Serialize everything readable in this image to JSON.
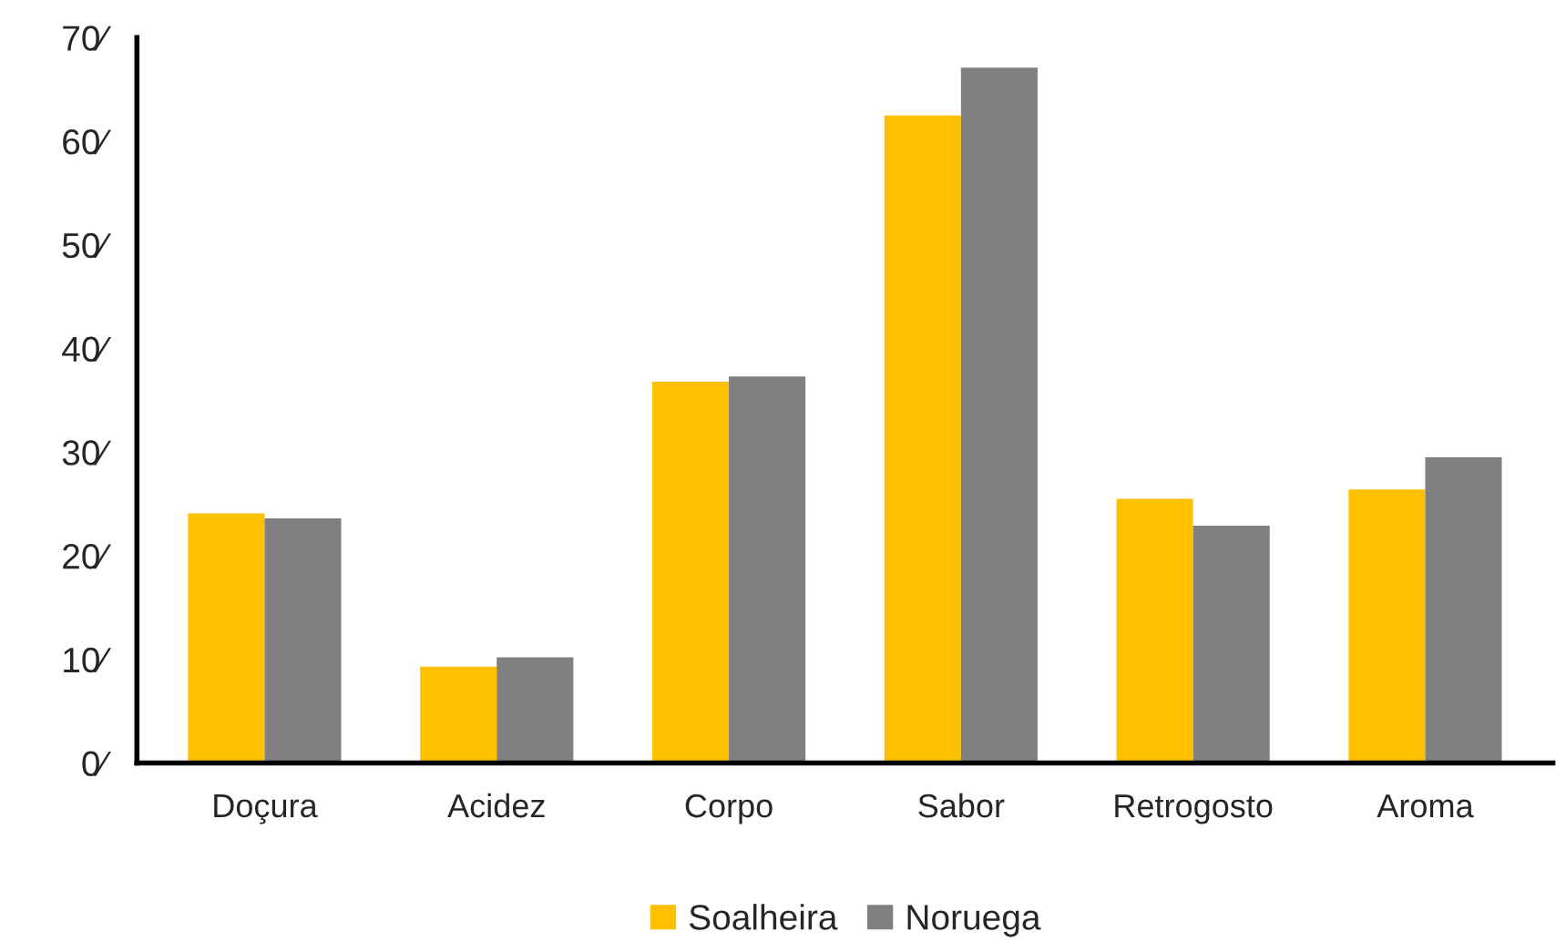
{
  "chart_data": {
    "type": "bar",
    "categories": [
      "Doçura",
      "Acidez",
      "Corpo",
      "Sabor",
      "Retrogosto",
      "Aroma"
    ],
    "series": [
      {
        "name": "Soalheira",
        "color": "#ffc000",
        "values": [
          24.1,
          9.3,
          36.8,
          62.5,
          25.5,
          26.4
        ]
      },
      {
        "name": "Noruega",
        "color": "#808080",
        "values": [
          23.6,
          10.2,
          37.3,
          67.1,
          22.9,
          29.5
        ]
      }
    ],
    "ylim": [
      0,
      70
    ],
    "yticks": [
      {
        "value": 0,
        "label": "0⁄"
      },
      {
        "value": 10,
        "label": "10⁄"
      },
      {
        "value": 20,
        "label": "20⁄"
      },
      {
        "value": 30,
        "label": "30⁄"
      },
      {
        "value": 40,
        "label": "40⁄"
      },
      {
        "value": 50,
        "label": "50⁄"
      },
      {
        "value": 60,
        "label": "60⁄"
      },
      {
        "value": 70,
        "label": "70⁄"
      }
    ],
    "grid": false,
    "legend": "bottom"
  }
}
